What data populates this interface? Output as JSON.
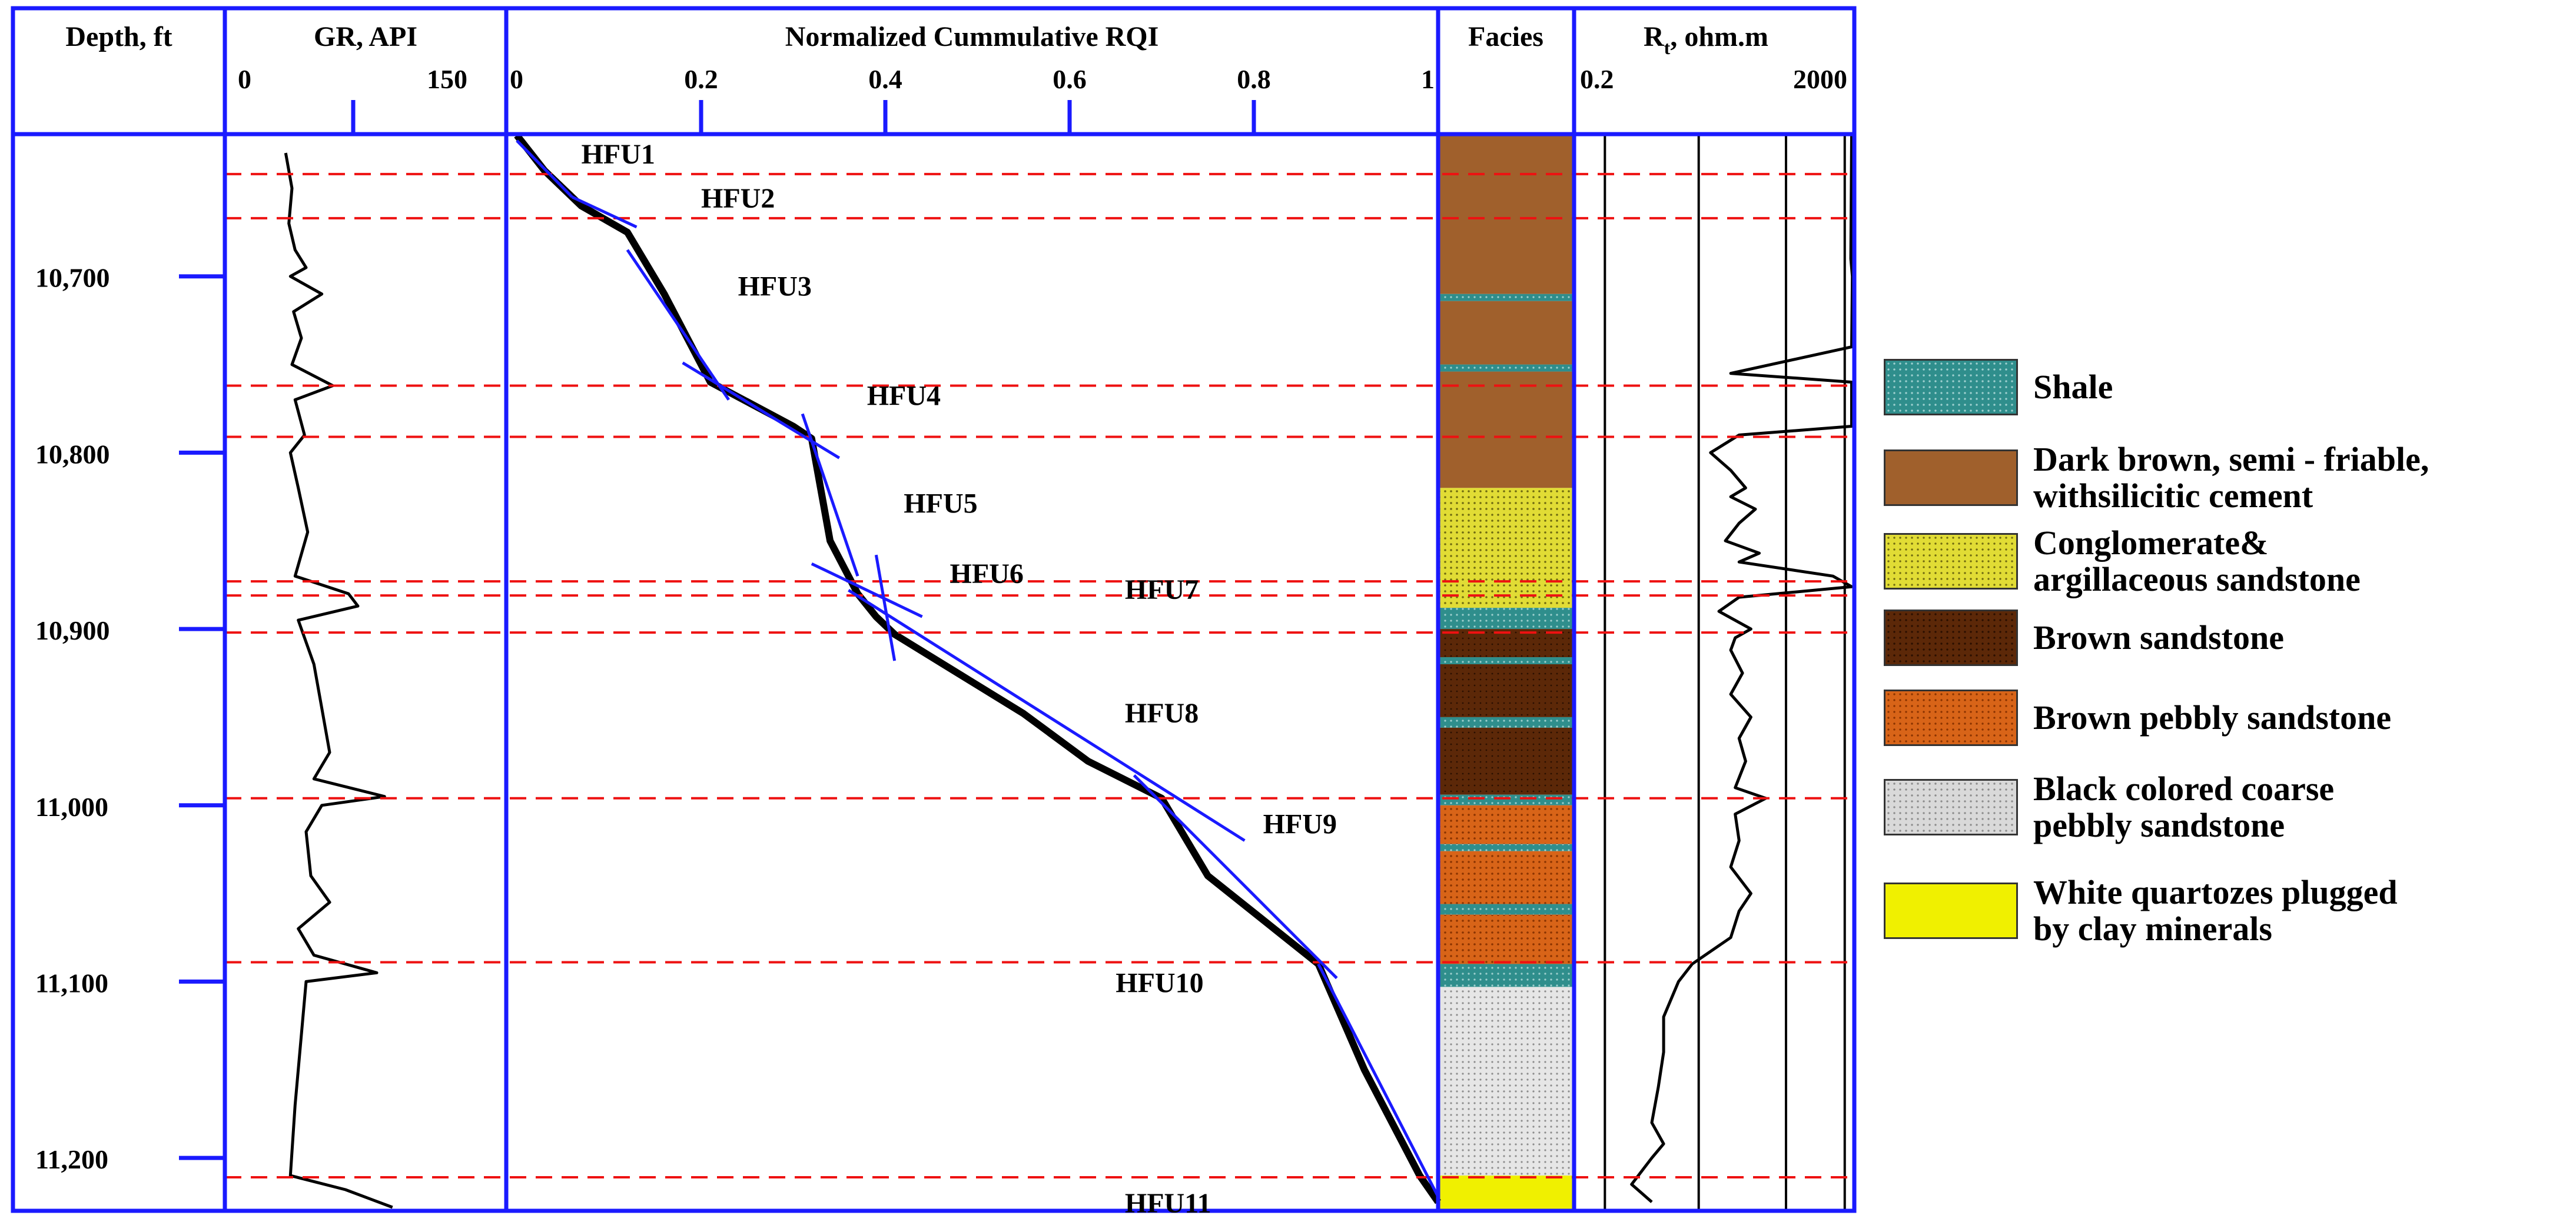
{
  "chart_data": {
    "type": "well-log",
    "depth_track": {
      "label": "Depth, ft",
      "range": [
        10620,
        11230
      ],
      "ticks": [
        "10,700",
        "10,800",
        "10,900",
        "11,000",
        "11,100",
        "11,200"
      ]
    },
    "gr_track": {
      "label": "GR, API",
      "range": [
        0,
        150
      ],
      "tick_labels": [
        "0",
        "150"
      ],
      "values": [
        [
          10630,
          32
        ],
        [
          10650,
          36
        ],
        [
          10670,
          34
        ],
        [
          10685,
          38
        ],
        [
          10695,
          45
        ],
        [
          10700,
          35
        ],
        [
          10710,
          55
        ],
        [
          10720,
          37
        ],
        [
          10735,
          42
        ],
        [
          10750,
          36
        ],
        [
          10762,
          62
        ],
        [
          10770,
          38
        ],
        [
          10790,
          44
        ],
        [
          10800,
          35
        ],
        [
          10820,
          40
        ],
        [
          10845,
          46
        ],
        [
          10870,
          38
        ],
        [
          10880,
          72
        ],
        [
          10887,
          78
        ],
        [
          10895,
          40
        ],
        [
          10920,
          50
        ],
        [
          10945,
          55
        ],
        [
          10970,
          60
        ],
        [
          10985,
          50
        ],
        [
          10995,
          95
        ],
        [
          11000,
          55
        ],
        [
          11015,
          45
        ],
        [
          11040,
          48
        ],
        [
          11055,
          60
        ],
        [
          11070,
          40
        ],
        [
          11085,
          50
        ],
        [
          11095,
          90
        ],
        [
          11100,
          45
        ],
        [
          11130,
          42
        ],
        [
          11170,
          38
        ],
        [
          11210,
          35
        ],
        [
          11218,
          70
        ],
        [
          11228,
          100
        ]
      ]
    },
    "rqi_track": {
      "label": "Normalized Cummulative RQI",
      "range": [
        0,
        1
      ],
      "tick_labels": [
        "0",
        "0.2",
        "0.4",
        "0.6",
        "0.8",
        "1"
      ],
      "curve": [
        [
          0.0,
          10620
        ],
        [
          0.03,
          10640
        ],
        [
          0.07,
          10660
        ],
        [
          0.12,
          10675
        ],
        [
          0.16,
          10710
        ],
        [
          0.21,
          10760
        ],
        [
          0.3,
          10785
        ],
        [
          0.32,
          10792
        ],
        [
          0.34,
          10850
        ],
        [
          0.37,
          10880
        ],
        [
          0.39,
          10893
        ],
        [
          0.41,
          10903
        ],
        [
          0.55,
          10948
        ],
        [
          0.62,
          10975
        ],
        [
          0.7,
          10996
        ],
        [
          0.75,
          11040
        ],
        [
          0.87,
          11090
        ],
        [
          0.92,
          11150
        ],
        [
          0.98,
          11210
        ],
        [
          1.0,
          11225
        ]
      ],
      "hfu_labels": [
        "HFU1",
        "HFU2",
        "HFU3",
        "HFU4",
        "HFU5",
        "HFU6",
        "HFU7",
        "HFU8",
        "HFU9",
        "HFU10",
        "HFU11"
      ],
      "hfu_label_depths": [
        10630,
        10655,
        10705,
        10767,
        10828,
        10868,
        10877,
        10947,
        11010,
        11100,
        11225
      ],
      "hfu_label_rqi": [
        0.07,
        0.2,
        0.24,
        0.38,
        0.42,
        0.47,
        0.66,
        0.66,
        0.81,
        0.65,
        0.66
      ],
      "boundaries": [
        10642,
        10667,
        10762,
        10791,
        10873,
        10881,
        10902,
        10996,
        11089,
        11211
      ],
      "fit_lines": [
        [
          [
            0.0,
            10623
          ],
          [
            0.06,
            10655
          ]
        ],
        [
          [
            0.06,
            10655
          ],
          [
            0.13,
            10672
          ]
        ],
        [
          [
            0.12,
            10685
          ],
          [
            0.23,
            10770
          ]
        ],
        [
          [
            0.18,
            10749
          ],
          [
            0.35,
            10803
          ]
        ],
        [
          [
            0.31,
            10778
          ],
          [
            0.37,
            10870
          ]
        ],
        [
          [
            0.32,
            10863
          ],
          [
            0.44,
            10893
          ]
        ],
        [
          [
            0.39,
            10858
          ],
          [
            0.41,
            10918
          ]
        ],
        [
          [
            0.36,
            10878
          ],
          [
            0.79,
            11020
          ]
        ],
        [
          [
            0.67,
            10983
          ],
          [
            0.89,
            11098
          ]
        ],
        [
          [
            0.87,
            11090
          ],
          [
            1.0,
            11222
          ]
        ]
      ]
    },
    "facies_track": {
      "label": "Facies",
      "intervals": [
        [
          10620,
          10710,
          "dark-brown"
        ],
        [
          10710,
          10714,
          "shale"
        ],
        [
          10714,
          10750,
          "dark-brown"
        ],
        [
          10750,
          10754,
          "shale"
        ],
        [
          10754,
          10820,
          "dark-brown"
        ],
        [
          10820,
          10888,
          "conglomerate"
        ],
        [
          10888,
          10900,
          "shale"
        ],
        [
          10900,
          10916,
          "brown-sandstone"
        ],
        [
          10916,
          10920,
          "shale"
        ],
        [
          10920,
          10950,
          "brown-sandstone"
        ],
        [
          10950,
          10956,
          "shale"
        ],
        [
          10956,
          10994,
          "brown-sandstone"
        ],
        [
          10994,
          11000,
          "shale"
        ],
        [
          11000,
          11022,
          "brown-pebbly"
        ],
        [
          11022,
          11026,
          "shale"
        ],
        [
          11026,
          11056,
          "brown-pebbly"
        ],
        [
          11056,
          11062,
          "shale"
        ],
        [
          11062,
          11090,
          "brown-pebbly"
        ],
        [
          11090,
          11103,
          "shale"
        ],
        [
          11103,
          11210,
          "black-coarse"
        ],
        [
          11210,
          11230,
          "white-quartz"
        ]
      ]
    },
    "rt_track": {
      "label_main": "R",
      "label_sub": "t",
      "label_tail": ", ohm.m",
      "range": [
        0.2,
        2000
      ],
      "tick_labels": [
        "0.2",
        "2000"
      ],
      "grid_values": [
        0.4,
        10,
        200,
        1500
      ],
      "values": [
        [
          10620,
          1900
        ],
        [
          10690,
          1850
        ],
        [
          10700,
          1950
        ],
        [
          10740,
          1900
        ],
        [
          10755,
          30
        ],
        [
          10760,
          1900
        ],
        [
          10785,
          1900
        ],
        [
          10790,
          40
        ],
        [
          10800,
          15
        ],
        [
          10810,
          30
        ],
        [
          10820,
          50
        ],
        [
          10825,
          30
        ],
        [
          10832,
          70
        ],
        [
          10840,
          40
        ],
        [
          10850,
          25
        ],
        [
          10857,
          80
        ],
        [
          10862,
          40
        ],
        [
          10870,
          1000
        ],
        [
          10876,
          1900
        ],
        [
          10882,
          40
        ],
        [
          10890,
          20
        ],
        [
          10900,
          60
        ],
        [
          10905,
          35
        ],
        [
          10912,
          30
        ],
        [
          10925,
          45
        ],
        [
          10937,
          30
        ],
        [
          10950,
          60
        ],
        [
          10962,
          40
        ],
        [
          10975,
          50
        ],
        [
          10990,
          35
        ],
        [
          10996,
          100
        ],
        [
          11005,
          35
        ],
        [
          11020,
          40
        ],
        [
          11035,
          30
        ],
        [
          11050,
          60
        ],
        [
          11060,
          40
        ],
        [
          11075,
          30
        ],
        [
          11090,
          8
        ],
        [
          11100,
          5
        ],
        [
          11120,
          3
        ],
        [
          11140,
          3
        ],
        [
          11160,
          2.5
        ],
        [
          11180,
          2
        ],
        [
          11192,
          3
        ],
        [
          11200,
          2
        ],
        [
          11215,
          1
        ],
        [
          11225,
          2
        ]
      ]
    },
    "legend": [
      {
        "key": "shale",
        "label": "Shale",
        "color": "#2f8e8c"
      },
      {
        "key": "dark-brown",
        "label": "Dark brown, semi - friable,\nwithsilicitic cement",
        "color": "#a0602c"
      },
      {
        "key": "conglomerate",
        "label": "Conglomerate&\nargillaceous sandstone",
        "color": "#e1dc35"
      },
      {
        "key": "brown-sandstone",
        "label": "Brown sandstone",
        "color": "#5c2808"
      },
      {
        "key": "brown-pebbly",
        "label": "Brown pebbly sandstone",
        "color": "#d86418"
      },
      {
        "key": "black-coarse",
        "label": "Black colored coarse\npebbly sandstone",
        "color": "#d9d9d9"
      },
      {
        "key": "white-quartz",
        "label": "White quartozes plugged\nby clay minerals",
        "color": "#f0f000"
      }
    ],
    "colors": {
      "frame": "#1a1aff",
      "boundary": "#ee1111",
      "fit_line": "#1a1aff",
      "curve": "#000000"
    }
  }
}
